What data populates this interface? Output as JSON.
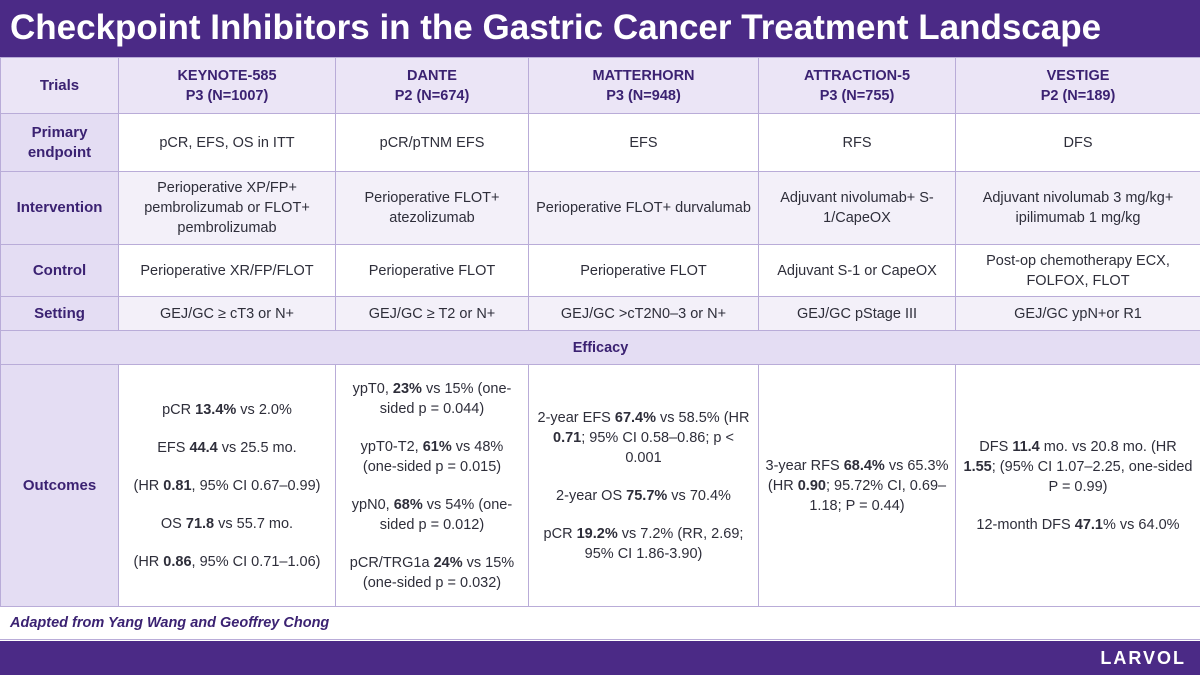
{
  "header": {
    "title": "Checkpoint Inhibitors in the Gastric Cancer Treatment Landscape"
  },
  "table": {
    "header": [
      [
        "Trials"
      ],
      [
        "KEYNOTE-585",
        "P3 (N=1007)"
      ],
      [
        "DANTE",
        "P2 (N=674)"
      ],
      [
        "MATTERHORN",
        "P3 (N=948)"
      ],
      [
        "ATTRACTION-5",
        "P3 (N=755)"
      ],
      [
        "VESTIGE",
        "P2 (N=189)"
      ]
    ],
    "rows": [
      [
        "Primary endpoint",
        "pCR, EFS, OS in ITT",
        "pCR/pTNM EFS",
        "EFS",
        "RFS",
        "DFS"
      ],
      [
        "Intervention",
        "Perioperative XP/FP+ pembrolizumab or FLOT+ pembrolizumab",
        "Perioperative FLOT+ atezolizumab",
        "Perioperative FLOT+ durvalumab",
        "Adjuvant nivolumab+ S-1/CapeOX",
        "Adjuvant nivolumab 3 mg/kg+ ipilimumab 1 mg/kg"
      ],
      [
        "Control",
        "Perioperative XR/FP/FLOT",
        "Perioperative FLOT",
        "Perioperative FLOT",
        "Adjuvant S-1 or CapeOX",
        "Post-op chemotherapy ECX, FOLFOX, FLOT"
      ],
      [
        "Setting",
        "GEJ/GC ≥ cT3 or N+",
        "GEJ/GC ≥ T2 or N+",
        "GEJ/GC >cT2N0–3 or N+",
        "GEJ/GC pStage III",
        "GEJ/GC ypN+or R1"
      ]
    ],
    "section": "Efficacy",
    "outcomes": {
      "label": "Outcomes",
      "cells": [
        [
          [
            "pCR ",
            "13.4%",
            " vs 2.0%"
          ],
          [
            "EFS ",
            "44.4",
            " vs 25.5 mo."
          ],
          [
            "(HR ",
            "0.81",
            ", 95% CI 0.67–0.99)"
          ],
          [
            "OS ",
            "71.8",
            " vs 55.7 mo."
          ],
          [
            "(HR ",
            "0.86",
            ", 95% CI 0.71–1.06)"
          ]
        ],
        [
          [
            "ypT0, ",
            "23%",
            " vs 15% (one-sided p = 0.044)"
          ],
          [
            "ypT0-T2, ",
            "61%",
            " vs 48% (one-sided p = 0.015)"
          ],
          [
            "ypN0, ",
            "68%",
            " vs 54% (one-sided p = 0.012)"
          ],
          [
            "pCR/TRG1a ",
            "24%",
            " vs 15% (one-sided p = 0.032)"
          ]
        ],
        [
          [
            "2-year EFS ",
            "67.4%",
            " vs 58.5% (HR ",
            "0.71",
            "; 95% CI 0.58–0.86; p < 0.001"
          ],
          [
            "2-year OS ",
            "75.7%",
            " vs 70.4%"
          ],
          [
            "pCR ",
            "19.2%",
            " vs 7.2% (RR, 2.69; 95% CI 1.86-3.90)"
          ]
        ],
        [
          [
            "3-year RFS ",
            "68.4%",
            " vs 65.3% (HR ",
            "0.90",
            "; 95.72% CI, 0.69–1.18; P = 0.44)"
          ]
        ],
        [
          [
            "DFS ",
            "11.4",
            " mo. vs 20.8 mo. (HR ",
            "1.55",
            "; (95% CI 1.07–2.25, one-sided P = 0.99)"
          ],
          [
            "12-month DFS ",
            "47.1",
            "% vs 64.0%"
          ]
        ]
      ]
    }
  },
  "footer": {
    "note": "Adapted from Yang Wang and Geoffrey Chong",
    "brand": "LARVOL"
  }
}
